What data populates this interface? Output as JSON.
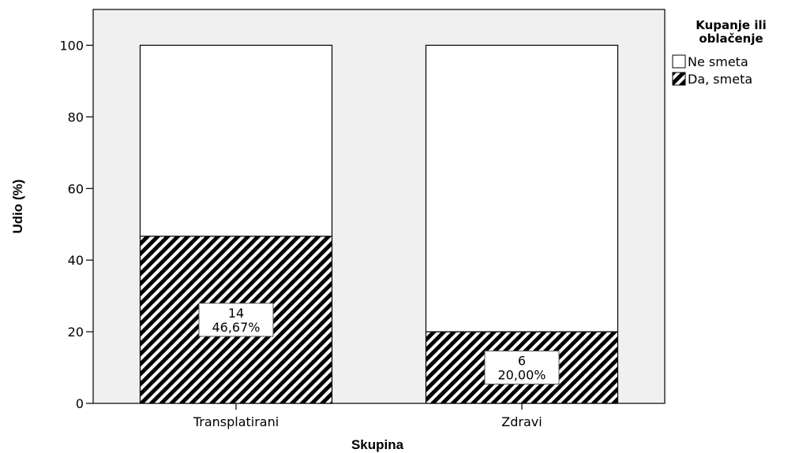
{
  "chart_data": {
    "type": "bar",
    "stacked": true,
    "percent": true,
    "categories": [
      "Transplatirani",
      "Zdravi"
    ],
    "series": [
      {
        "name": "Ne smeta",
        "values": [
          53.33,
          80.0
        ],
        "fill": "#ffffff",
        "pattern": "none"
      },
      {
        "name": "Da, smeta",
        "values": [
          46.67,
          20.0
        ],
        "counts": [
          14,
          6
        ],
        "fill": "#000000",
        "pattern": "diagonal-hatch"
      }
    ],
    "data_labels": [
      {
        "category": "Transplatirani",
        "count": "14",
        "percent": "46,67%"
      },
      {
        "category": "Zdravi",
        "count": "6",
        "percent": "20,00%"
      }
    ],
    "xlabel": "Skupina",
    "ylabel": "Udio (%)",
    "ylim": [
      0,
      110
    ],
    "yticks": [
      0,
      20,
      40,
      60,
      80,
      100
    ],
    "legend": {
      "title_lines": [
        "Kupanje ili",
        "oblačenje"
      ],
      "placement": "right",
      "entries": [
        "Ne smeta",
        "Da, smeta"
      ]
    },
    "plot_background": "#f0f0f0",
    "grid": false
  }
}
